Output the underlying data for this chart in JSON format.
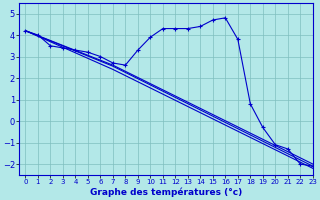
{
  "title": "Graphe des températures (°c)",
  "bg_color": "#b3e8e8",
  "line_color": "#0000cc",
  "grid_color": "#7fbfbf",
  "xlim": [
    -0.5,
    23
  ],
  "ylim": [
    -2.5,
    5.5
  ],
  "yticks": [
    -2,
    -1,
    0,
    1,
    2,
    3,
    4,
    5
  ],
  "xticks": [
    0,
    1,
    2,
    3,
    4,
    5,
    6,
    7,
    8,
    9,
    10,
    11,
    12,
    13,
    14,
    15,
    16,
    17,
    18,
    19,
    20,
    21,
    22,
    23
  ],
  "lines": [
    {
      "x": [
        0,
        1,
        2,
        3,
        4,
        5,
        6,
        7,
        8,
        9,
        10,
        11,
        12,
        13,
        14,
        15,
        16,
        17,
        18,
        19,
        20,
        21,
        22,
        23
      ],
      "y": [
        4.2,
        4.0,
        3.5,
        3.4,
        3.3,
        3.2,
        3.0,
        2.7,
        2.6,
        3.3,
        3.9,
        4.3,
        4.3,
        4.3,
        4.4,
        4.7,
        4.8,
        3.8,
        0.8,
        -0.3,
        -1.1,
        -1.3,
        -2.0,
        -2.1
      ],
      "marker": "+"
    },
    {
      "x": [
        0,
        7,
        23
      ],
      "y": [
        4.2,
        2.6,
        -2.0
      ],
      "marker": null
    },
    {
      "x": [
        0,
        7,
        23
      ],
      "y": [
        4.2,
        2.55,
        -2.1
      ],
      "marker": null
    },
    {
      "x": [
        0,
        7,
        23
      ],
      "y": [
        4.2,
        2.4,
        -2.2
      ],
      "marker": null
    }
  ]
}
